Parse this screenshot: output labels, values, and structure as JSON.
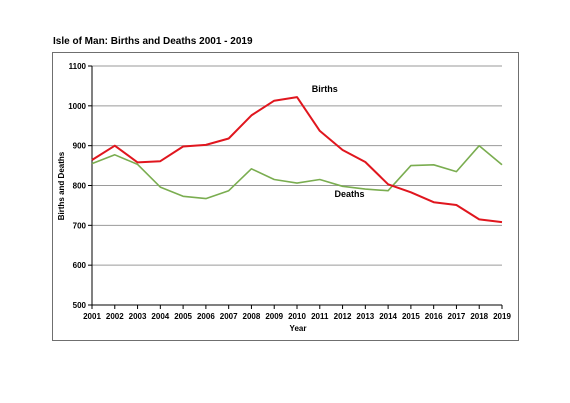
{
  "chart_data": {
    "type": "line",
    "title": "Isle of Man: Births and Deaths 2001 - 2019",
    "xlabel": "Year",
    "ylabel": "Births and Deaths",
    "ylim": [
      500,
      1100
    ],
    "yticks": [
      500,
      600,
      700,
      800,
      900,
      1000,
      1100
    ],
    "grid": true,
    "legend": "none (direct labels)",
    "x": [
      "2001",
      "2002",
      "2003",
      "2004",
      "2005",
      "2006",
      "2007",
      "2008",
      "2009",
      "2010",
      "2011",
      "2012",
      "2013",
      "2014",
      "2015",
      "2016",
      "2017",
      "2018",
      "2019"
    ],
    "series": [
      {
        "name": "Births",
        "color": "#e0161e",
        "label_x": "2011",
        "label_y": 1035,
        "values": [
          864,
          900,
          858,
          861,
          898,
          902,
          918,
          976,
          1013,
          1022,
          937,
          889,
          859,
          803,
          783,
          758,
          751,
          715,
          708
        ]
      },
      {
        "name": "Deaths",
        "color": "#7aad50",
        "label_x": "2012",
        "label_y": 771,
        "values": [
          855,
          877,
          853,
          796,
          773,
          767,
          787,
          842,
          815,
          806,
          815,
          798,
          791,
          787,
          850,
          852,
          835,
          900,
          852
        ]
      }
    ]
  }
}
